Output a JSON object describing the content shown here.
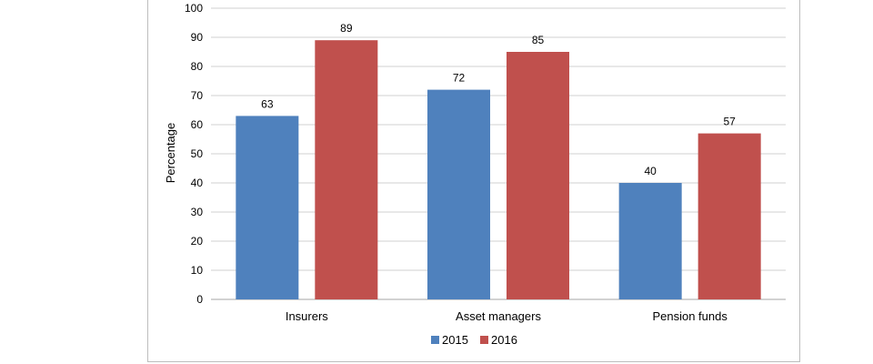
{
  "chart_data": {
    "type": "bar",
    "categories": [
      "Insurers",
      "Asset managers",
      "Pension funds"
    ],
    "series": [
      {
        "name": "2015",
        "values": [
          63,
          72,
          40
        ],
        "color": "#4f81bd"
      },
      {
        "name": "2016",
        "values": [
          89,
          85,
          57
        ],
        "color": "#c0504d"
      }
    ],
    "ylabel": "Percentage",
    "ylim": [
      0,
      100
    ],
    "yticks": [
      0,
      10,
      20,
      30,
      40,
      50,
      60,
      70,
      80,
      90,
      100
    ],
    "grid": true,
    "legend_position": "bottom"
  }
}
